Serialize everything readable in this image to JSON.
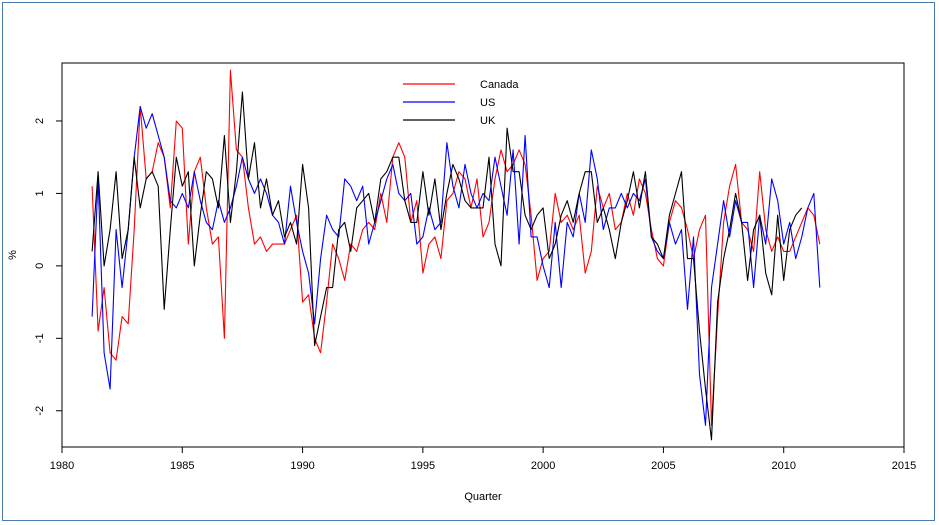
{
  "chart_data": {
    "type": "line",
    "title": "",
    "xlabel": "Quarter",
    "ylabel": "%",
    "xlim": [
      1980,
      2015
    ],
    "ylim": [
      -2.5,
      2.8
    ],
    "xticks": [
      "1980",
      "1985",
      "1990",
      "1995",
      "2000",
      "2005",
      "2010",
      "2015"
    ],
    "yticks": [
      "-2",
      "-1",
      "0",
      "1",
      "2"
    ],
    "grid": false,
    "legend_position": "top-center",
    "x_start": 1981.25,
    "x_step": 0.25,
    "series": [
      {
        "name": "Canada",
        "color": "#ff0000",
        "values": [
          1.1,
          -0.9,
          -0.3,
          -1.2,
          -1.3,
          -0.7,
          -0.8,
          0.5,
          2.2,
          1.2,
          1.3,
          1.7,
          1.5,
          0.8,
          2.0,
          1.9,
          0.3,
          1.3,
          1.5,
          0.8,
          0.3,
          0.4,
          -1.0,
          2.7,
          1.6,
          1.5,
          0.8,
          0.3,
          0.4,
          0.2,
          0.3,
          0.3,
          0.3,
          0.5,
          0.7,
          -0.5,
          -0.4,
          -1.0,
          -1.2,
          -0.5,
          0.3,
          0.1,
          -0.2,
          0.3,
          0.2,
          0.5,
          0.6,
          0.5,
          1.0,
          0.6,
          1.5,
          1.7,
          1.5,
          0.6,
          0.9,
          -0.1,
          0.3,
          0.4,
          0.1,
          0.9,
          1.0,
          1.3,
          1.2,
          0.8,
          1.2,
          0.4,
          0.6,
          1.2,
          1.6,
          1.3,
          1.4,
          1.6,
          1.4,
          0.7,
          -0.2,
          0.1,
          0.2,
          1.0,
          0.6,
          0.7,
          0.5,
          0.7,
          -0.1,
          0.2,
          1.1,
          0.8,
          1.0,
          0.5,
          0.6,
          1.0,
          0.7,
          1.2,
          1.0,
          0.5,
          0.1,
          0.0,
          0.6,
          0.9,
          0.8,
          0.5,
          0.1,
          0.5,
          0.7,
          -2.2,
          -0.7,
          0.6,
          1.1,
          1.4,
          0.6,
          0.5,
          0.2,
          1.3,
          0.5,
          0.2,
          0.4,
          0.2,
          0.2,
          0.4,
          0.6,
          0.8,
          0.7,
          0.3
        ],
        "values_note": "quarterly approximation of plotted line"
      },
      {
        "name": "US",
        "color": "#0000ff",
        "values": [
          -0.7,
          1.2,
          -1.2,
          -1.7,
          0.5,
          -0.3,
          0.5,
          1.5,
          2.2,
          1.9,
          2.1,
          1.8,
          1.5,
          0.9,
          0.8,
          1.0,
          0.8,
          1.3,
          0.9,
          0.6,
          0.5,
          0.9,
          0.6,
          0.8,
          1.1,
          1.5,
          1.2,
          1.0,
          1.2,
          1.0,
          0.7,
          0.6,
          0.3,
          1.1,
          0.6,
          0.2,
          -0.1,
          -0.8,
          0.1,
          0.7,
          0.5,
          0.4,
          1.2,
          1.1,
          0.9,
          1.1,
          0.3,
          0.6,
          0.9,
          1.2,
          1.4,
          1.0,
          0.9,
          1.0,
          0.3,
          0.4,
          0.8,
          0.5,
          0.6,
          1.7,
          1.1,
          0.8,
          1.4,
          1.0,
          0.8,
          1.0,
          0.9,
          1.5,
          1.1,
          0.7,
          1.6,
          0.3,
          1.8,
          0.4,
          0.4,
          0.0,
          -0.3,
          0.6,
          -0.3,
          0.6,
          0.4,
          1.0,
          0.6,
          1.6,
          1.2,
          0.5,
          0.8,
          0.8,
          1.0,
          0.8,
          1.0,
          0.9,
          1.2,
          0.4,
          0.2,
          0.1,
          0.6,
          0.3,
          0.5,
          -0.6,
          0.4,
          -1.5,
          -2.2,
          -0.3,
          0.3,
          0.9,
          0.4,
          0.9,
          0.6,
          0.6,
          -0.3,
          0.7,
          0.3,
          1.2,
          0.9,
          0.3,
          0.6,
          0.1,
          0.4,
          0.8,
          1.0,
          -0.3
        ],
        "values_note": "quarterly approximation of plotted line"
      },
      {
        "name": "UK",
        "color": "#000000",
        "values": [
          0.2,
          1.3,
          0.0,
          0.5,
          1.3,
          0.1,
          0.5,
          1.5,
          0.8,
          1.2,
          1.3,
          1.1,
          -0.6,
          0.5,
          1.5,
          1.1,
          1.3,
          0.0,
          0.7,
          1.3,
          1.2,
          0.8,
          1.8,
          0.6,
          1.3,
          2.4,
          1.2,
          1.7,
          0.8,
          1.2,
          0.7,
          0.9,
          0.4,
          0.6,
          0.3,
          1.4,
          0.8,
          -1.1,
          -0.7,
          -0.3,
          -0.3,
          0.5,
          0.6,
          0.2,
          0.8,
          0.9,
          1.0,
          0.6,
          1.2,
          1.3,
          1.5,
          1.5,
          0.9,
          0.6,
          0.6,
          1.3,
          0.7,
          1.2,
          0.5,
          1.0,
          1.4,
          1.2,
          0.9,
          0.8,
          0.8,
          0.8,
          1.5,
          0.3,
          0.0,
          1.9,
          1.3,
          1.3,
          0.7,
          0.5,
          0.7,
          0.8,
          0.1,
          0.3,
          0.7,
          0.9,
          0.6,
          1.0,
          1.3,
          1.3,
          0.6,
          0.8,
          0.5,
          0.1,
          0.6,
          0.9,
          1.3,
          0.8,
          1.3,
          0.4,
          0.3,
          0.1,
          0.7,
          1.0,
          1.3,
          0.1,
          0.1,
          -0.9,
          -1.7,
          -2.4,
          -0.5,
          0.1,
          0.5,
          1.0,
          0.6,
          -0.2,
          0.5,
          0.7,
          -0.1,
          -0.4,
          0.7,
          -0.2,
          0.5,
          0.7,
          0.8
        ],
        "values_note": "quarterly approximation of plotted line"
      }
    ]
  }
}
